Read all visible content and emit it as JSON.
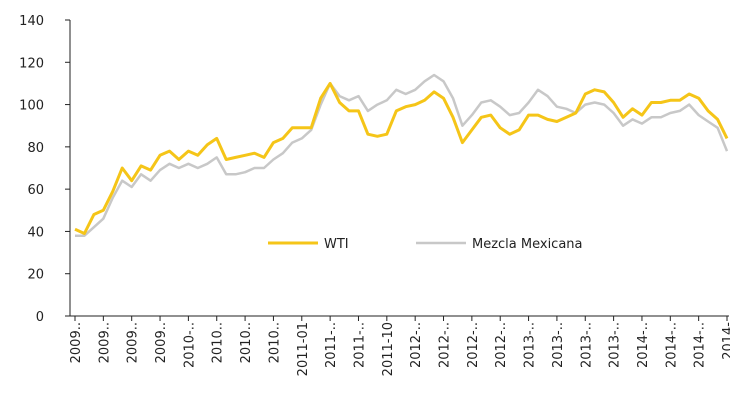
{
  "chart_data": {
    "type": "line",
    "categories": [
      "2009..",
      null,
      null,
      "2009..",
      null,
      null,
      "2009..",
      null,
      null,
      "2009..",
      null,
      null,
      "2010-..",
      null,
      null,
      "2010..",
      null,
      null,
      "2010..",
      null,
      null,
      "2010..",
      null,
      null,
      "2011-01",
      null,
      null,
      "2011-..",
      null,
      null,
      "2011-..",
      null,
      null,
      "2011-10",
      null,
      null,
      "2012-..",
      null,
      null,
      "2012-..",
      null,
      null,
      "2012-..",
      null,
      null,
      "2012-..",
      null,
      null,
      "2013-..",
      null,
      null,
      "2013-..",
      null,
      null,
      "2013-..",
      null,
      null,
      "2013-..",
      null,
      null,
      "2014-..",
      null,
      null,
      "2014-..",
      null,
      null,
      "2014-..",
      null,
      null,
      "2014-"
    ],
    "series": [
      {
        "name": "WTI",
        "color": "#f5c518",
        "values": [
          41,
          39,
          48,
          50,
          59,
          70,
          64,
          71,
          69,
          76,
          78,
          74,
          78,
          76,
          81,
          84,
          74,
          75,
          76,
          77,
          75,
          82,
          84,
          89,
          89,
          89,
          103,
          110,
          101,
          97,
          97,
          86,
          85,
          86,
          97,
          99,
          100,
          102,
          106,
          103,
          94,
          82,
          88,
          94,
          95,
          89,
          86,
          88,
          95,
          95,
          93,
          92,
          94,
          96,
          105,
          107,
          106,
          101,
          94,
          98,
          95,
          101,
          101,
          102,
          102,
          105,
          103,
          97,
          93,
          84
        ]
      },
      {
        "name": "Mezcla Mexicana",
        "color": "#c8c8c8",
        "values": [
          38,
          38,
          42,
          46,
          56,
          64,
          61,
          67,
          64,
          69,
          72,
          70,
          72,
          70,
          72,
          75,
          67,
          67,
          68,
          70,
          70,
          74,
          77,
          82,
          84,
          88,
          100,
          110,
          104,
          102,
          104,
          97,
          100,
          102,
          107,
          105,
          107,
          111,
          114,
          111,
          103,
          90,
          95,
          101,
          102,
          99,
          95,
          96,
          101,
          107,
          104,
          99,
          98,
          96,
          100,
          101,
          100,
          96,
          90,
          93,
          91,
          94,
          94,
          96,
          97,
          100,
          95,
          92,
          89,
          78
        ]
      }
    ],
    "ylim": [
      0,
      140
    ],
    "yticks": [
      0,
      20,
      40,
      60,
      80,
      100,
      120,
      140
    ],
    "grid": false,
    "legend": "center"
  }
}
